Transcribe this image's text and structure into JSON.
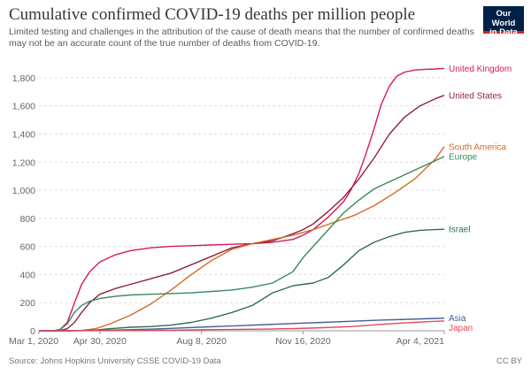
{
  "header": {
    "title": "Cumulative confirmed COVID-19 deaths per million people",
    "subtitle": "Limited testing and challenges in the attribution of the cause of death means that the number of confirmed deaths may not be an accurate count of the true number of deaths from COVID-19.",
    "logo_line1": "Our World",
    "logo_line2": "in Data"
  },
  "footer": {
    "source": "Source: Johns Hopkins University CSSE COVID-19 Data",
    "license": "CC BY"
  },
  "colors": {
    "United Kingdom": "#d6195b",
    "United States": "#8c2340",
    "South America": "#d46a26",
    "Europe": "#3a8a5a",
    "Israel": "#2d6e58",
    "Asia": "#4a5d99",
    "Japan": "#e04a5a",
    "grid": "#dddddd",
    "logo_bg": "#002147",
    "logo_accent": "#ce261e"
  },
  "chart_data": {
    "type": "line",
    "xlabel": "",
    "ylabel": "",
    "x_ticks": [
      "Mar 1, 2020",
      "Apr 30, 2020",
      "Aug 8, 2020",
      "Nov 16, 2020",
      "Apr 4, 2021"
    ],
    "x_tick_days": [
      0,
      60,
      160,
      260,
      399
    ],
    "xlim": [
      0,
      399
    ],
    "ylim": [
      0,
      1900
    ],
    "y_ticks": [
      0,
      200,
      400,
      600,
      800,
      1000,
      1200,
      1400,
      1600,
      1800
    ],
    "y_tick_labels": [
      "0",
      "200",
      "400",
      "600",
      "800",
      "1,000",
      "1,200",
      "1,400",
      "1,600",
      "1,800"
    ],
    "grid": "horizontal dashed",
    "labels": "right end of each line",
    "series": [
      {
        "name": "United Kingdom",
        "x": [
          0,
          14,
          21,
          28,
          35,
          42,
          50,
          60,
          75,
          90,
          110,
          130,
          150,
          170,
          190,
          210,
          230,
          250,
          260,
          270,
          285,
          300,
          307,
          315,
          322,
          330,
          337,
          345,
          352,
          360,
          370,
          380,
          390,
          399
        ],
        "y": [
          0,
          0,
          10,
          60,
          200,
          330,
          420,
          490,
          540,
          570,
          590,
          600,
          605,
          610,
          615,
          620,
          630,
          650,
          680,
          720,
          810,
          920,
          1000,
          1120,
          1260,
          1440,
          1610,
          1740,
          1810,
          1840,
          1855,
          1860,
          1862,
          1866
        ]
      },
      {
        "name": "United States",
        "x": [
          0,
          14,
          21,
          28,
          35,
          42,
          50,
          60,
          75,
          90,
          110,
          130,
          150,
          170,
          190,
          210,
          230,
          250,
          260,
          270,
          285,
          300,
          315,
          330,
          345,
          360,
          375,
          390,
          399
        ],
        "y": [
          0,
          0,
          2,
          15,
          60,
          130,
          200,
          260,
          300,
          330,
          370,
          410,
          470,
          530,
          590,
          620,
          640,
          690,
          720,
          760,
          850,
          950,
          1080,
          1230,
          1400,
          1520,
          1600,
          1650,
          1675
        ]
      },
      {
        "name": "South America",
        "x": [
          0,
          14,
          28,
          42,
          56,
          70,
          90,
          110,
          130,
          150,
          170,
          190,
          210,
          230,
          250,
          270,
          290,
          310,
          330,
          350,
          370,
          390,
          399
        ],
        "y": [
          0,
          0,
          0,
          2,
          15,
          50,
          110,
          190,
          290,
          400,
          500,
          580,
          620,
          650,
          680,
          720,
          770,
          820,
          890,
          980,
          1080,
          1220,
          1310
        ]
      },
      {
        "name": "Europe",
        "x": [
          0,
          14,
          21,
          28,
          35,
          42,
          50,
          60,
          75,
          90,
          110,
          130,
          150,
          170,
          190,
          210,
          230,
          250,
          260,
          270,
          285,
          300,
          315,
          330,
          345,
          360,
          375,
          390,
          399
        ],
        "y": [
          0,
          0,
          10,
          50,
          130,
          180,
          210,
          230,
          245,
          255,
          260,
          265,
          270,
          280,
          290,
          310,
          340,
          420,
          520,
          600,
          720,
          840,
          930,
          1010,
          1060,
          1110,
          1160,
          1210,
          1240
        ]
      },
      {
        "name": "Israel",
        "x": [
          0,
          28,
          42,
          56,
          70,
          90,
          110,
          130,
          150,
          170,
          190,
          210,
          230,
          250,
          260,
          270,
          285,
          300,
          315,
          330,
          345,
          360,
          375,
          390,
          399
        ],
        "y": [
          0,
          0,
          1,
          5,
          15,
          25,
          30,
          40,
          60,
          90,
          130,
          180,
          270,
          320,
          330,
          340,
          380,
          470,
          570,
          630,
          670,
          700,
          715,
          720,
          722
        ]
      },
      {
        "name": "Asia",
        "x": [
          0,
          28,
          56,
          84,
          112,
          140,
          168,
          196,
          224,
          252,
          280,
          308,
          336,
          364,
          392,
          399
        ],
        "y": [
          0,
          1,
          3,
          6,
          12,
          20,
          28,
          36,
          44,
          52,
          60,
          68,
          76,
          82,
          88,
          90
        ]
      },
      {
        "name": "Japan",
        "x": [
          0,
          28,
          56,
          84,
          112,
          140,
          168,
          196,
          224,
          252,
          280,
          308,
          336,
          364,
          392,
          399
        ],
        "y": [
          0,
          0,
          1,
          2,
          3,
          5,
          8,
          10,
          12,
          16,
          22,
          30,
          45,
          58,
          68,
          70
        ]
      }
    ]
  }
}
